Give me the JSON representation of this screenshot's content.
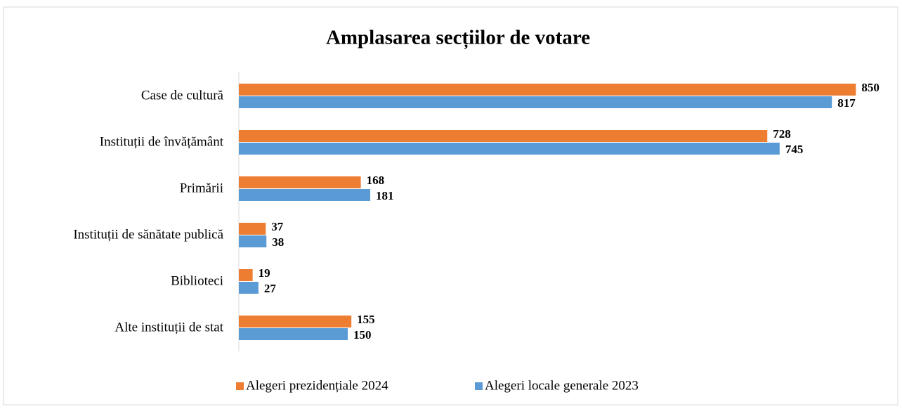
{
  "chart_data": {
    "type": "hbar",
    "title": "Amplasarea secțiilor de votare",
    "categories": [
      "Case de cultură",
      "Instituții de învățământ",
      "Primării",
      "Instituții de sănătate publică",
      "Biblioteci",
      "Alte instituții de stat"
    ],
    "series": [
      {
        "name": "Alegeri prezidențiale 2024",
        "color": "#ed7d31",
        "values": [
          850,
          728,
          168,
          37,
          19,
          155
        ]
      },
      {
        "name": "Alegeri locale generale 2023",
        "color": "#5b9bd5",
        "values": [
          817,
          745,
          181,
          38,
          27,
          150
        ]
      }
    ],
    "xlim": [
      0,
      900
    ],
    "legend": "bottom"
  }
}
